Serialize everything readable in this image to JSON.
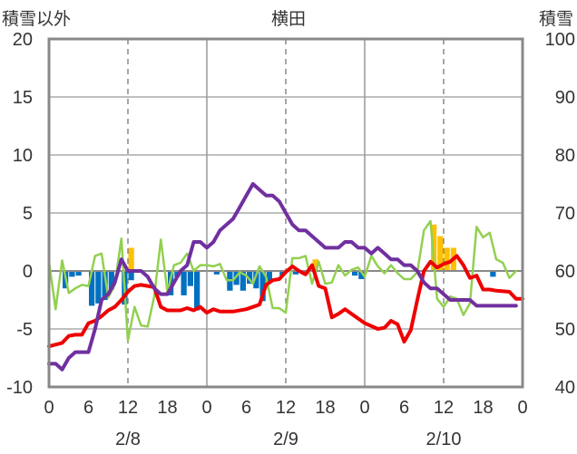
{
  "chart_data": {
    "type": "line",
    "title": "横田",
    "ylabel_left": "積雪以外",
    "ylabel_right": "積雪",
    "y_left_ticks": [
      "20",
      "15",
      "10",
      "5",
      "0",
      "-5",
      "-10"
    ],
    "y_right_ticks": [
      "100",
      "90",
      "80",
      "70",
      "60",
      "50",
      "40"
    ],
    "ylim_left": [
      -10,
      20
    ],
    "ylim_right": [
      40,
      100
    ],
    "x_tick_labels": [
      "0",
      "6",
      "12",
      "18",
      "0",
      "6",
      "12",
      "18",
      "0",
      "6",
      "12",
      "18",
      "0"
    ],
    "dates": [
      "2/8",
      "2/9",
      "2/10"
    ],
    "x_range_hours": [
      0,
      72
    ],
    "grid": true,
    "series": [
      {
        "color": "#ee0000",
        "axis": "left",
        "x": [
          0,
          2,
          3,
          4,
          5,
          6,
          7,
          8,
          9,
          10,
          11,
          12,
          13,
          14,
          15,
          16,
          17,
          18,
          20,
          21,
          22,
          23,
          24,
          25,
          26,
          28,
          30,
          31,
          32,
          33,
          34,
          35,
          36,
          37,
          38,
          39,
          40,
          41,
          42,
          43,
          44,
          45,
          46,
          48,
          50,
          51,
          52,
          53,
          54,
          55,
          56,
          57,
          58,
          59,
          60,
          61,
          62,
          63,
          64,
          65,
          66,
          67,
          68,
          70,
          71,
          72
        ],
        "y": [
          -6.5,
          -6.2,
          -5.6,
          -5.5,
          -5.5,
          -4.5,
          -4.3,
          -3.9,
          -3.4,
          -3.1,
          -2.5,
          -1.8,
          -1.3,
          -1.2,
          -1.3,
          -1.4,
          -3.1,
          -3.4,
          -3.4,
          -3.2,
          -3.4,
          -3.1,
          -3.6,
          -3.3,
          -3.5,
          -3.5,
          -3.3,
          -3.1,
          -2.9,
          -1.2,
          -0.8,
          -0.7,
          -0.1,
          0.4,
          0,
          -0.3,
          0.5,
          -1.3,
          -1.5,
          -4,
          -3.7,
          -3.3,
          -3.7,
          -4.5,
          -5,
          -4.9,
          -4.3,
          -4.6,
          -6.1,
          -5.1,
          -2.5,
          0,
          0.8,
          0.3,
          0.6,
          0.8,
          1.3,
          0.5,
          -0.6,
          -0.4,
          -1.6,
          -1.6,
          -1.7,
          -1.8,
          -2.4,
          -2.4
        ]
      },
      {
        "color": "#7030a0",
        "axis": "right",
        "x": [
          0,
          1,
          2,
          3,
          4,
          5,
          6,
          7,
          8,
          9,
          10,
          11,
          12,
          13,
          14,
          15,
          16,
          17,
          18,
          19,
          20,
          21,
          22,
          23,
          24,
          25,
          26,
          27,
          28,
          29,
          30,
          31,
          32,
          33,
          34,
          35,
          36,
          37,
          38,
          39,
          40,
          41,
          42,
          43,
          44,
          45,
          46,
          47,
          48,
          49,
          50,
          51,
          52,
          53,
          54,
          55,
          56,
          57,
          58,
          59,
          60,
          61,
          62,
          63,
          64,
          65,
          66,
          67,
          68,
          69,
          70,
          71
        ],
        "y": [
          44,
          44,
          43,
          45,
          46,
          46,
          46,
          50,
          55,
          56,
          58,
          62,
          60,
          60,
          60,
          59,
          57,
          56,
          56,
          58,
          60,
          61,
          65,
          65,
          64,
          65,
          67,
          68,
          69,
          71,
          73,
          75,
          74,
          73,
          73,
          72,
          70,
          68,
          67,
          67,
          66,
          65,
          64,
          64,
          64,
          65,
          65,
          64,
          64,
          63,
          64,
          63,
          62,
          62,
          61,
          61,
          60,
          58,
          57,
          57,
          56,
          55,
          55,
          55,
          55,
          54,
          54,
          54,
          54,
          54,
          54,
          54
        ]
      },
      {
        "color": "#92d050",
        "axis": "left",
        "x": [
          0,
          1,
          2,
          3,
          4,
          5,
          6,
          7,
          8,
          9,
          10,
          11,
          12,
          13,
          14,
          15,
          16,
          17,
          18,
          19,
          20,
          21,
          22,
          23,
          24,
          25,
          26,
          27,
          28,
          29,
          30,
          31,
          32,
          33,
          34,
          35,
          36,
          37,
          38,
          39,
          40,
          41,
          42,
          43,
          44,
          45,
          46,
          47,
          48,
          49,
          50,
          51,
          52,
          53,
          54,
          55,
          56,
          57,
          58,
          59,
          60,
          61,
          62,
          63,
          64,
          65,
          66,
          67,
          68,
          69,
          70,
          71
        ],
        "y": [
          0.8,
          -3.3,
          0.9,
          -1.9,
          -1.5,
          -1.2,
          -1.3,
          1.3,
          1.5,
          -2.3,
          -1.2,
          2.8,
          -6,
          -3.1,
          -4.7,
          -4.8,
          -2.2,
          2.7,
          -1.8,
          0.5,
          0.7,
          1.5,
          0,
          0.5,
          0.5,
          0.4,
          0.6,
          -0.8,
          -0.8,
          -0.1,
          -0.4,
          -1.1,
          0.4,
          -0.5,
          -3.2,
          -3.2,
          -3.6,
          1.1,
          1.1,
          1.3,
          -1.1,
          0.8,
          -1.1,
          -1,
          0.5,
          -0.4,
          0.1,
          0.3,
          -0.5,
          1.3,
          0.4,
          -0.2,
          0.5,
          -0.2,
          -0.7,
          -0.7,
          -0.1,
          3.5,
          4.3,
          -2.4,
          -3.1,
          -2.2,
          -2.4,
          -3.8,
          -2.8,
          3.8,
          2.9,
          3.3,
          1,
          0.7,
          -0.6,
          0
        ]
      }
    ],
    "bars": [
      {
        "color": "#0070c0",
        "values": [
          0,
          0,
          -1.5,
          -0.5,
          -0.4,
          0,
          -3,
          -2.8,
          -2.5,
          -1.6,
          0,
          -2.9,
          -0.8,
          0,
          0,
          0,
          0,
          0,
          -2.1,
          -0.5,
          -2.1,
          -1.3,
          -3.4,
          0,
          0,
          -0.3,
          0,
          -1.7,
          -1.2,
          -1.7,
          -1.1,
          -1.5,
          -2.6,
          -1,
          0,
          -0.4,
          0,
          -0.3,
          0,
          0,
          0,
          0,
          0,
          0,
          0,
          0,
          -0.4,
          -0.7,
          0,
          0,
          0,
          0,
          0,
          0,
          0,
          0,
          0,
          0,
          0,
          0,
          0,
          0,
          0,
          0,
          0,
          0,
          0,
          -0.5,
          0,
          0,
          0,
          0
        ]
      },
      {
        "color": "#ffc000",
        "values": [
          0,
          0,
          0,
          0,
          0,
          0,
          0,
          0,
          0,
          0,
          0,
          0,
          2,
          0,
          0,
          0,
          0,
          0,
          0,
          0,
          0,
          0,
          0,
          0,
          0,
          0,
          0,
          0,
          0,
          0,
          0,
          0,
          0,
          0,
          0,
          0,
          0,
          0,
          0,
          0,
          0,
          0,
          0,
          0,
          0,
          0,
          0,
          0,
          0,
          0,
          0,
          0,
          0,
          0,
          0,
          0,
          0,
          0,
          0,
          0,
          0,
          0,
          0,
          0,
          0,
          0,
          0,
          0,
          0,
          0,
          0,
          0
        ]
      },
      {
        "color": "#ffc000",
        "values": [
          0,
          0,
          0,
          0,
          0,
          0,
          0,
          0,
          0,
          0,
          0,
          0,
          0,
          0,
          0,
          0,
          0,
          0,
          0,
          0,
          0,
          0,
          0,
          0,
          0,
          0,
          0,
          0,
          0,
          0,
          0,
          0,
          0,
          0,
          0,
          0,
          0,
          0,
          0,
          0,
          0,
          0,
          0,
          0,
          0,
          0,
          0,
          0,
          0,
          0,
          0,
          0,
          0,
          0,
          0,
          0,
          0,
          0,
          0,
          0,
          0,
          0,
          0,
          0,
          0,
          0,
          0,
          0,
          0,
          0,
          0,
          0
        ]
      },
      {
        "color": "#ffc000",
        "values": [
          0,
          0,
          0,
          0,
          0,
          0,
          0,
          0,
          0,
          0,
          0,
          0,
          0,
          0,
          0,
          0,
          0,
          0,
          0,
          0,
          0,
          0,
          0,
          0,
          0,
          0,
          0,
          0,
          0,
          0,
          0,
          0,
          0,
          0,
          0,
          0,
          0,
          0,
          0,
          0,
          1,
          0,
          0,
          0,
          0,
          0,
          0,
          0,
          0,
          0,
          0,
          0,
          0,
          0,
          0,
          0,
          0,
          0,
          0,
          0,
          0,
          0,
          0,
          0,
          0,
          0,
          0,
          0,
          0,
          0,
          0,
          0
        ]
      },
      {
        "color": "#ffc000",
        "values": [
          0,
          0,
          0,
          0,
          0,
          0,
          0,
          0,
          0,
          0,
          0,
          0,
          0,
          0,
          0,
          0,
          0,
          0,
          0,
          0,
          0,
          0,
          0,
          0,
          0,
          0,
          0,
          0,
          0,
          0,
          0,
          0,
          0,
          0,
          0,
          0,
          0,
          0,
          0,
          0,
          0,
          0,
          0,
          0,
          0,
          0,
          0,
          0,
          0,
          0,
          0,
          0,
          0,
          0,
          0,
          0,
          0,
          0,
          0,
          0,
          0,
          0,
          0,
          0,
          0,
          0,
          0,
          0,
          0,
          0,
          0,
          0
        ]
      },
      {
        "color": "#ffc000",
        "values": [
          0,
          0,
          0,
          0,
          0,
          0,
          0,
          0,
          0,
          0,
          0,
          0,
          0,
          0,
          0,
          0,
          0,
          0,
          0,
          0,
          0,
          0,
          0,
          0,
          0,
          0,
          0,
          0,
          0,
          0,
          0,
          0,
          0,
          0,
          0,
          0,
          0,
          0,
          0,
          0,
          0,
          0,
          0,
          0,
          0,
          0,
          0,
          0,
          0,
          0,
          0,
          0,
          0,
          0,
          0,
          0,
          0,
          0,
          0,
          0,
          0,
          0,
          0,
          0,
          0,
          0,
          0,
          0,
          0,
          0,
          0,
          0
        ]
      },
      {
        "color": "#ffc000",
        "values": [
          0,
          0,
          0,
          0,
          0,
          0,
          0,
          0,
          0,
          0,
          0,
          0,
          0,
          0,
          0,
          0,
          0,
          0,
          0,
          0,
          0,
          0,
          0,
          0,
          0,
          0,
          0,
          0,
          0,
          0,
          0,
          0,
          0,
          0,
          0,
          0,
          0,
          0,
          0,
          0,
          0,
          0,
          0,
          0,
          0,
          0,
          0,
          0,
          0,
          0,
          0,
          0,
          0,
          0,
          0,
          0,
          0,
          0,
          4,
          3,
          2,
          2,
          0,
          0,
          0,
          0,
          0,
          0,
          0,
          0,
          0,
          0
        ]
      }
    ]
  }
}
